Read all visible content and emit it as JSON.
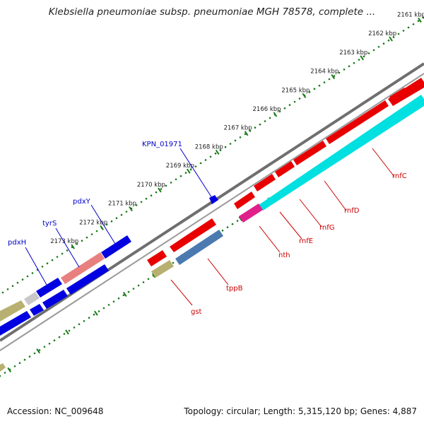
{
  "title": "Klebsiella pneumoniae subsp. pneumoniae MGH 78578, complete ...",
  "footer": {
    "accession": "Accession: NC_009648",
    "summary": "Topology: circular; Length: 5,315,120 bp; Genes: 4,887"
  },
  "colors": {
    "red": "#e80000",
    "blue": "#0000e0",
    "cyan": "#00e0e0",
    "magenta": "#e0208a",
    "steel": "#4a7ab0",
    "olive": "#b7b070",
    "pink": "#e88080",
    "grey": "#c8c8c8",
    "backbone": "#777777",
    "tick": "#1a7a1a"
  },
  "ticks": [
    {
      "kbp": 2161,
      "label": "2161 kbp"
    },
    {
      "kbp": 2162,
      "label": "2162 kbp"
    },
    {
      "kbp": 2163,
      "label": "2163 kbp"
    },
    {
      "kbp": 2164,
      "label": "2164 kbp"
    },
    {
      "kbp": 2165,
      "label": "2165 kbp"
    },
    {
      "kbp": 2166,
      "label": "2166 kbp"
    },
    {
      "kbp": 2167,
      "label": "2167 kbp"
    },
    {
      "kbp": 2168,
      "label": "2168 kbp"
    },
    {
      "kbp": 2169,
      "label": "2169 kbp"
    },
    {
      "kbp": 2170,
      "label": "2170 kbp"
    },
    {
      "kbp": 2171,
      "label": "2171 kbp"
    },
    {
      "kbp": 2172,
      "label": "2172 kbp"
    },
    {
      "kbp": 2173,
      "label": "2173 kbp"
    }
  ],
  "gene_labels": {
    "forward": [
      {
        "name": "KPN_01971"
      },
      {
        "name": "pdxY"
      },
      {
        "name": "tyrS"
      },
      {
        "name": "pdxH"
      }
    ],
    "reverse": [
      {
        "name": "rnfC"
      },
      {
        "name": "rnfD"
      },
      {
        "name": "rnfG"
      },
      {
        "name": "rnfE"
      },
      {
        "name": "nth"
      },
      {
        "name": "tppB"
      },
      {
        "name": "gst"
      }
    ]
  }
}
